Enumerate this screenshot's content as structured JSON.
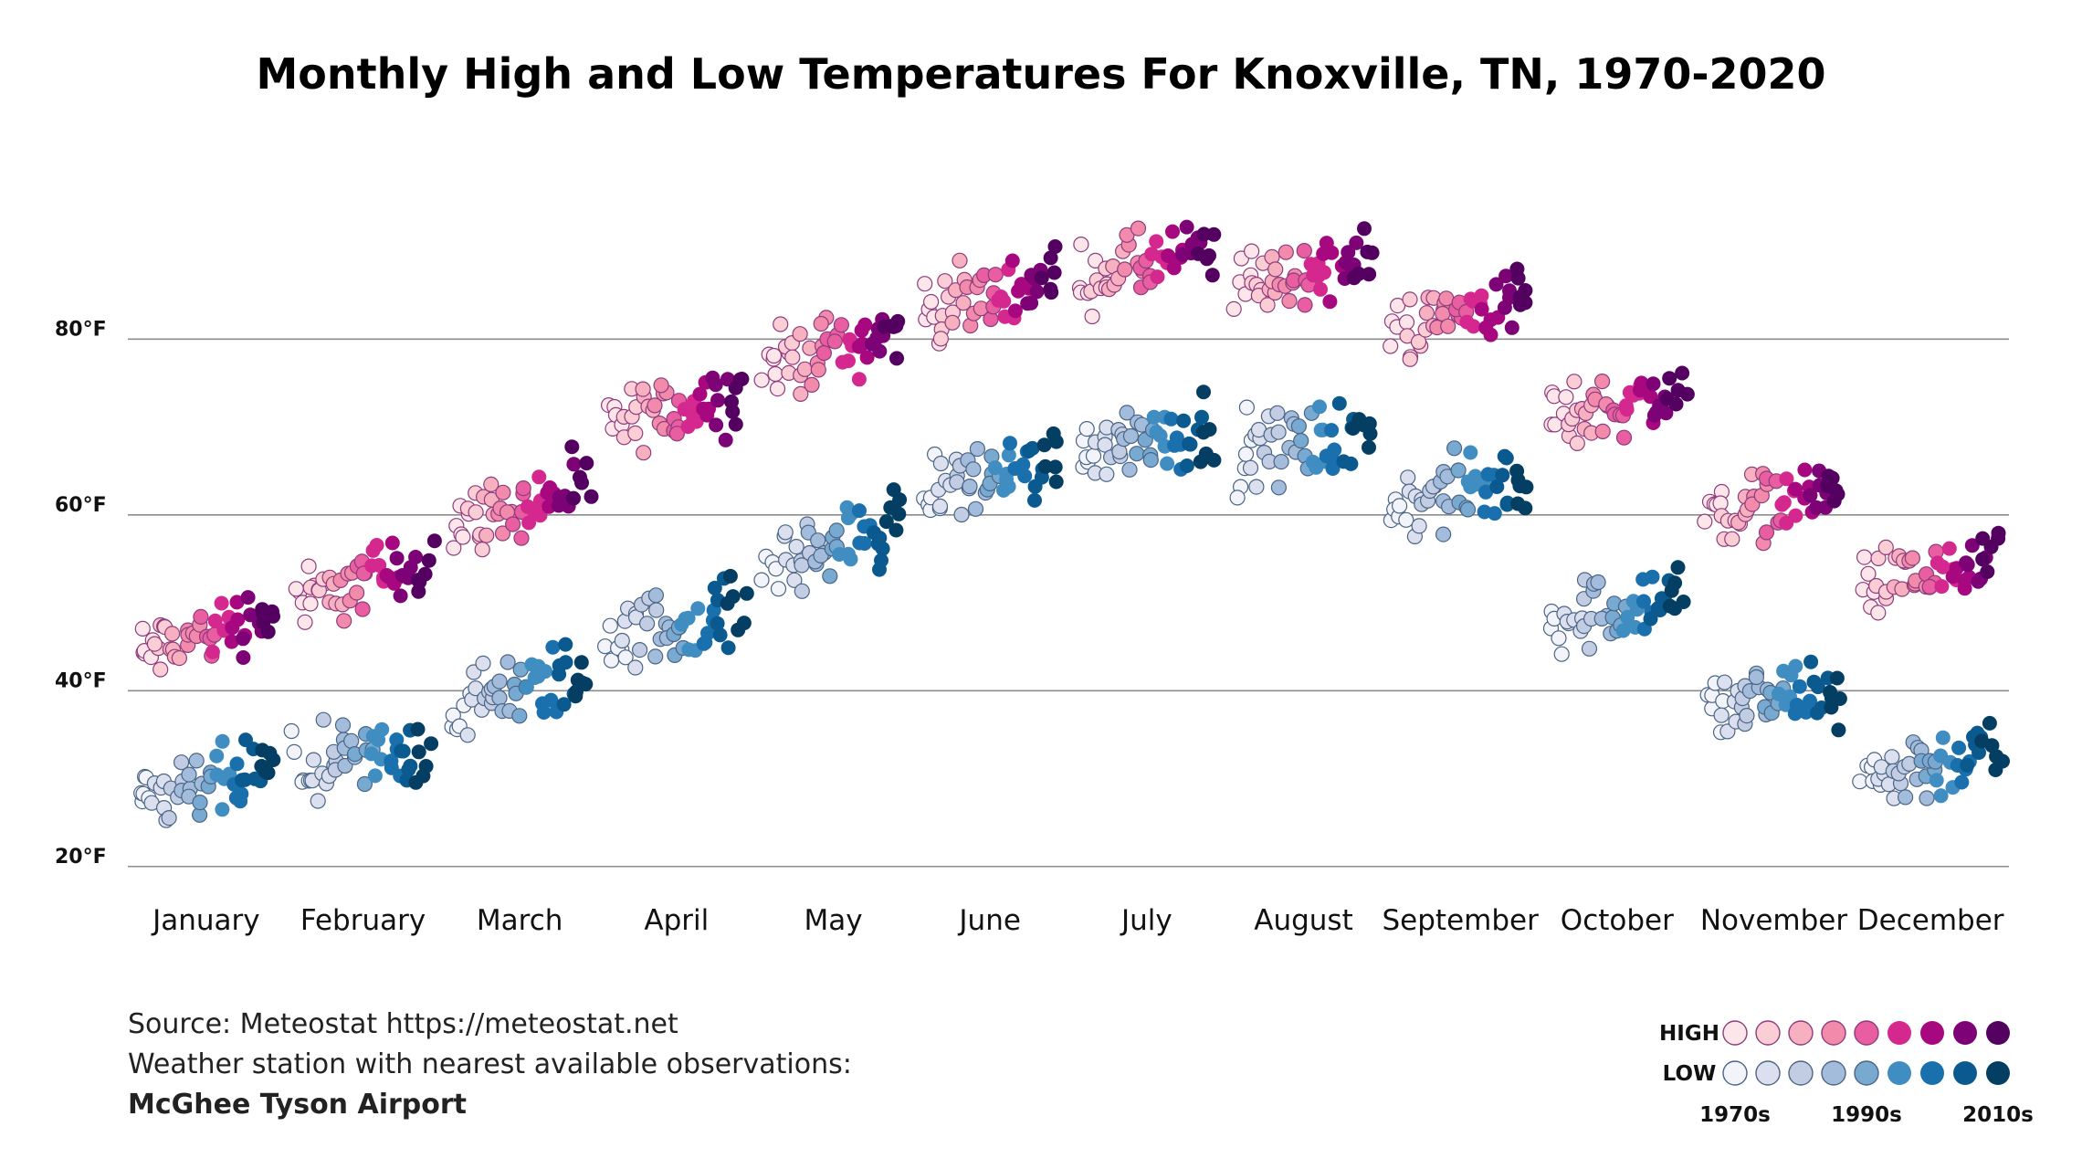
{
  "chart_data": {
    "type": "scatter",
    "title": "Monthly High and Low Temperatures For Knoxville, TN, 1970-2020",
    "xlabel": "",
    "ylabel": "",
    "y_ticks": [
      "20°F",
      "40°F",
      "60°F",
      "80°F"
    ],
    "y_tick_values": [
      20,
      40,
      60,
      80
    ],
    "ylim": [
      18,
      103
    ],
    "categories": [
      "January",
      "February",
      "March",
      "April",
      "May",
      "June",
      "July",
      "August",
      "September",
      "October",
      "November",
      "December"
    ],
    "years": [
      1970,
      2020
    ],
    "series": [
      {
        "name": "HIGH",
        "decade_colors": [
          "#fde6ea",
          "#fbcdd5",
          "#f7b0bf",
          "#f28aab",
          "#e95ea1",
          "#d4288f",
          "#a8087f",
          "#7d0276",
          "#540060"
        ],
        "trend_start": [
          44,
          50,
          59,
          70,
          77,
          83,
          87,
          86,
          81,
          71,
          60,
          52
        ],
        "trend_end": [
          49,
          55,
          63,
          74,
          81,
          87,
          90,
          89,
          85,
          74,
          63,
          54
        ]
      },
      {
        "name": "LOW",
        "decade_colors": [
          "#f3f3fa",
          "#dcdfee",
          "#c2cce3",
          "#a3bcdc",
          "#78a9d1",
          "#3f8dc1",
          "#1a6fad",
          "#0b5a8f",
          "#053e63"
        ],
        "trend_start": [
          27,
          31,
          38,
          46,
          54,
          63,
          68,
          67,
          61,
          48,
          38,
          30
        ],
        "trend_end": [
          31,
          33,
          42,
          49,
          59,
          66,
          70,
          69,
          64,
          51,
          40,
          33
        ]
      }
    ],
    "legend": {
      "position": "bottom-right",
      "high_label": "HIGH",
      "low_label": "LOW",
      "decade_labels": [
        "1970s",
        "1990s",
        "2010s"
      ]
    }
  },
  "source": {
    "line1": "Source: Meteostat https://meteostat.net",
    "line2": "Weather station with nearest available observations:",
    "station": "McGhee Tyson Airport"
  }
}
